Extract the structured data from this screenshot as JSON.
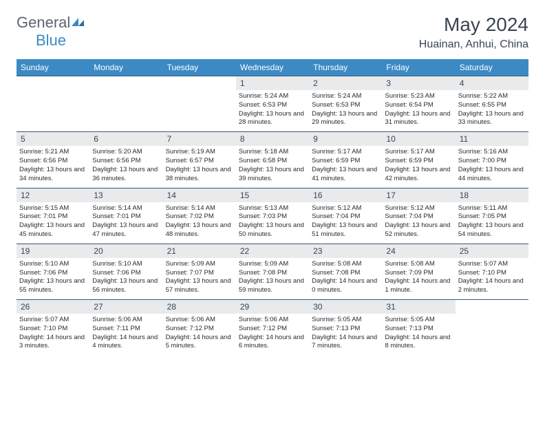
{
  "logo": {
    "text_part1": "General",
    "text_part2": "Blue",
    "color1": "#5a6570",
    "color2": "#3b8ac4"
  },
  "title": "May 2024",
  "location": "Huainan, Anhui, China",
  "header_color": "#3b8ac4",
  "weekdays": [
    "Sunday",
    "Monday",
    "Tuesday",
    "Wednesday",
    "Thursday",
    "Friday",
    "Saturday"
  ],
  "weeks": [
    [
      null,
      null,
      null,
      {
        "day": "1",
        "sunrise": "5:24 AM",
        "sunset": "6:53 PM",
        "daylight": "13 hours and 28 minutes."
      },
      {
        "day": "2",
        "sunrise": "5:24 AM",
        "sunset": "6:53 PM",
        "daylight": "13 hours and 29 minutes."
      },
      {
        "day": "3",
        "sunrise": "5:23 AM",
        "sunset": "6:54 PM",
        "daylight": "13 hours and 31 minutes."
      },
      {
        "day": "4",
        "sunrise": "5:22 AM",
        "sunset": "6:55 PM",
        "daylight": "13 hours and 33 minutes."
      }
    ],
    [
      {
        "day": "5",
        "sunrise": "5:21 AM",
        "sunset": "6:56 PM",
        "daylight": "13 hours and 34 minutes."
      },
      {
        "day": "6",
        "sunrise": "5:20 AM",
        "sunset": "6:56 PM",
        "daylight": "13 hours and 36 minutes."
      },
      {
        "day": "7",
        "sunrise": "5:19 AM",
        "sunset": "6:57 PM",
        "daylight": "13 hours and 38 minutes."
      },
      {
        "day": "8",
        "sunrise": "5:18 AM",
        "sunset": "6:58 PM",
        "daylight": "13 hours and 39 minutes."
      },
      {
        "day": "9",
        "sunrise": "5:17 AM",
        "sunset": "6:59 PM",
        "daylight": "13 hours and 41 minutes."
      },
      {
        "day": "10",
        "sunrise": "5:17 AM",
        "sunset": "6:59 PM",
        "daylight": "13 hours and 42 minutes."
      },
      {
        "day": "11",
        "sunrise": "5:16 AM",
        "sunset": "7:00 PM",
        "daylight": "13 hours and 44 minutes."
      }
    ],
    [
      {
        "day": "12",
        "sunrise": "5:15 AM",
        "sunset": "7:01 PM",
        "daylight": "13 hours and 45 minutes."
      },
      {
        "day": "13",
        "sunrise": "5:14 AM",
        "sunset": "7:01 PM",
        "daylight": "13 hours and 47 minutes."
      },
      {
        "day": "14",
        "sunrise": "5:14 AM",
        "sunset": "7:02 PM",
        "daylight": "13 hours and 48 minutes."
      },
      {
        "day": "15",
        "sunrise": "5:13 AM",
        "sunset": "7:03 PM",
        "daylight": "13 hours and 50 minutes."
      },
      {
        "day": "16",
        "sunrise": "5:12 AM",
        "sunset": "7:04 PM",
        "daylight": "13 hours and 51 minutes."
      },
      {
        "day": "17",
        "sunrise": "5:12 AM",
        "sunset": "7:04 PM",
        "daylight": "13 hours and 52 minutes."
      },
      {
        "day": "18",
        "sunrise": "5:11 AM",
        "sunset": "7:05 PM",
        "daylight": "13 hours and 54 minutes."
      }
    ],
    [
      {
        "day": "19",
        "sunrise": "5:10 AM",
        "sunset": "7:06 PM",
        "daylight": "13 hours and 55 minutes."
      },
      {
        "day": "20",
        "sunrise": "5:10 AM",
        "sunset": "7:06 PM",
        "daylight": "13 hours and 56 minutes."
      },
      {
        "day": "21",
        "sunrise": "5:09 AM",
        "sunset": "7:07 PM",
        "daylight": "13 hours and 57 minutes."
      },
      {
        "day": "22",
        "sunrise": "5:09 AM",
        "sunset": "7:08 PM",
        "daylight": "13 hours and 59 minutes."
      },
      {
        "day": "23",
        "sunrise": "5:08 AM",
        "sunset": "7:08 PM",
        "daylight": "14 hours and 0 minutes."
      },
      {
        "day": "24",
        "sunrise": "5:08 AM",
        "sunset": "7:09 PM",
        "daylight": "14 hours and 1 minute."
      },
      {
        "day": "25",
        "sunrise": "5:07 AM",
        "sunset": "7:10 PM",
        "daylight": "14 hours and 2 minutes."
      }
    ],
    [
      {
        "day": "26",
        "sunrise": "5:07 AM",
        "sunset": "7:10 PM",
        "daylight": "14 hours and 3 minutes."
      },
      {
        "day": "27",
        "sunrise": "5:06 AM",
        "sunset": "7:11 PM",
        "daylight": "14 hours and 4 minutes."
      },
      {
        "day": "28",
        "sunrise": "5:06 AM",
        "sunset": "7:12 PM",
        "daylight": "14 hours and 5 minutes."
      },
      {
        "day": "29",
        "sunrise": "5:06 AM",
        "sunset": "7:12 PM",
        "daylight": "14 hours and 6 minutes."
      },
      {
        "day": "30",
        "sunrise": "5:05 AM",
        "sunset": "7:13 PM",
        "daylight": "14 hours and 7 minutes."
      },
      {
        "day": "31",
        "sunrise": "5:05 AM",
        "sunset": "7:13 PM",
        "daylight": "14 hours and 8 minutes."
      },
      null
    ]
  ],
  "labels": {
    "sunrise": "Sunrise:",
    "sunset": "Sunset:",
    "daylight": "Daylight:"
  }
}
